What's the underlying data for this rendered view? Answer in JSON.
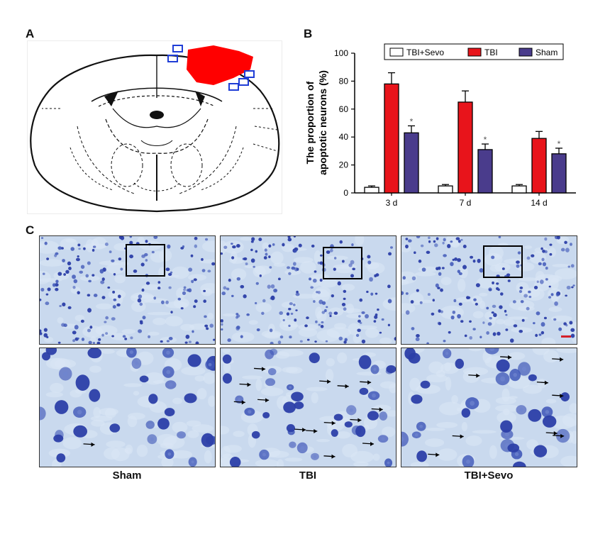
{
  "panels": {
    "a": "A",
    "b": "B",
    "c": "C"
  },
  "chart_data": {
    "type": "bar",
    "categories": [
      "3 d",
      "7 d",
      "14 d"
    ],
    "series": [
      {
        "name": "TBI+Sevo",
        "values": [
          4,
          5,
          5
        ],
        "errors": [
          1,
          1,
          1
        ],
        "color": "#ffffff"
      },
      {
        "name": "TBI",
        "values": [
          78,
          65,
          39
        ],
        "errors": [
          8,
          8,
          5
        ],
        "color": "#e8141b"
      },
      {
        "name": "Sham",
        "values": [
          43,
          31,
          28
        ],
        "errors": [
          5,
          4,
          4
        ],
        "color": "#4a3c8c"
      }
    ],
    "significance": [
      {
        "category": "3 d",
        "series": "Sham",
        "mark": "*"
      },
      {
        "category": "7 d",
        "series": "Sham",
        "mark": "*"
      },
      {
        "category": "14 d",
        "series": "Sham",
        "mark": "*"
      }
    ],
    "ylabel_line1": "The proportion of",
    "ylabel_line2": "apoptotic neurons (%)",
    "ylim": [
      0,
      100
    ],
    "yticks": [
      0,
      20,
      40,
      60,
      80,
      100
    ],
    "legend": "top"
  },
  "micrographs": {
    "captions": [
      "Sham",
      "TBI",
      "TBI+Sevo"
    ],
    "background": "#c9d9ee",
    "cell_color": "#3f57b8"
  },
  "colors": {
    "lesion": "#ff0000",
    "roi_box": "#1f3dd6",
    "axis": "#000000"
  }
}
